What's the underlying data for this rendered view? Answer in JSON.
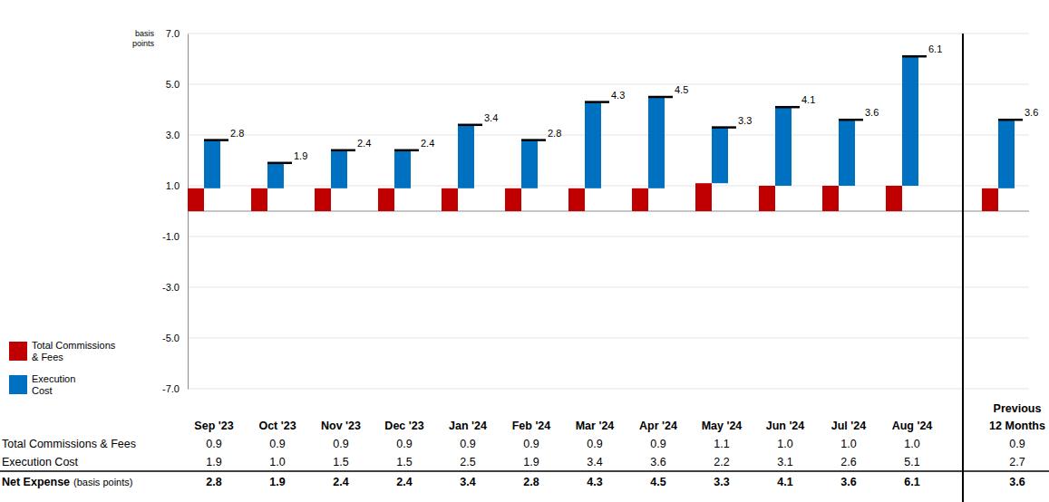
{
  "chart_data": {
    "type": "bar",
    "stacked": true,
    "data_labels": true,
    "grid": true,
    "legend": "left",
    "ylabel": "basis points",
    "categories": [
      "Sep '23",
      "Oct '23",
      "Nov '23",
      "Dec '23",
      "Jan '24",
      "Feb '24",
      "Mar '24",
      "Apr '24",
      "May '24",
      "Jun '24",
      "Jul '24",
      "Aug '24",
      "Previous 12 Months"
    ],
    "ylim": [
      -7,
      7
    ],
    "yticks": [
      {
        "value": -7,
        "label": "-7.0"
      },
      {
        "value": -5,
        "label": "-5.0"
      },
      {
        "value": -3,
        "label": "-3.0"
      },
      {
        "value": -1,
        "label": "-1.0"
      },
      {
        "value": 1,
        "label": "1.0"
      },
      {
        "value": 3,
        "label": "3.0"
      },
      {
        "value": 5,
        "label": "5.0"
      },
      {
        "value": 7,
        "label": "7.0"
      }
    ],
    "series": [
      {
        "name": "Total Commissions & Fees",
        "color": "#c00000",
        "values": [
          0.9,
          0.9,
          0.9,
          0.9,
          0.9,
          0.9,
          0.9,
          0.9,
          1.1,
          1,
          1,
          1,
          0.9
        ],
        "value_labels": [
          "0.9",
          "0.9",
          "0.9",
          "0.9",
          "0.9",
          "0.9",
          "0.9",
          "0.9",
          "1.1",
          "1.0",
          "1.0",
          "1.0",
          "0.9"
        ]
      },
      {
        "name": "Execution Cost",
        "color": "#0070c0",
        "values": [
          1.9,
          1,
          1.5,
          1.5,
          2.5,
          1.9,
          3.4,
          3.6,
          2.2,
          3.1,
          2.6,
          5.1,
          2.7
        ],
        "value_labels": [
          "1.9",
          "1.0",
          "1.5",
          "1.5",
          "2.5",
          "1.9",
          "3.4",
          "3.6",
          "2.2",
          "3.1",
          "2.6",
          "5.1",
          "2.7"
        ]
      }
    ],
    "net": {
      "name": "Net Expense",
      "unit_label": "(basis points)",
      "values": [
        2.8,
        1.9,
        2.4,
        2.4,
        3.4,
        2.8,
        4.3,
        4.5,
        3.3,
        4.1,
        3.6,
        6.1,
        3.6
      ],
      "value_labels": [
        "2.8",
        "1.9",
        "2.4",
        "2.4",
        "3.4",
        "2.8",
        "4.3",
        "4.5",
        "3.3",
        "4.1",
        "3.6",
        "6.1",
        "3.6"
      ]
    }
  }
}
